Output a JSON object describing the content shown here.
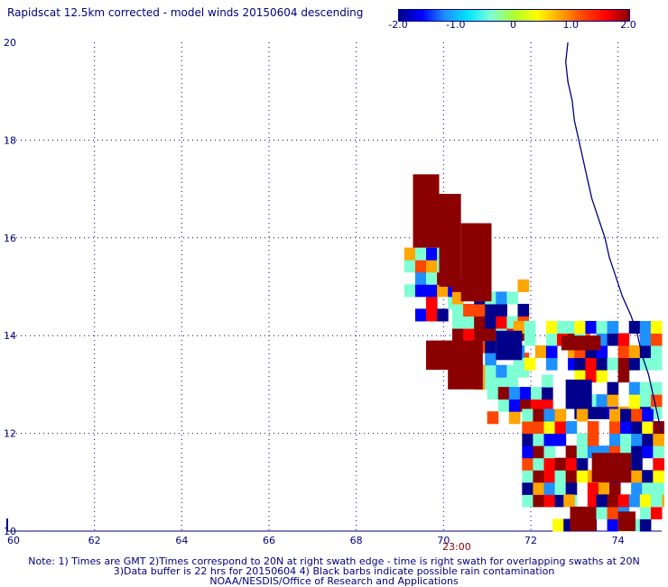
{
  "title": "Rapidscat 12.5km corrected - model winds 20150604 descending",
  "colorbar": {
    "ticks": [
      "-2.0",
      "-1.0",
      "0",
      "1.0",
      "2.0"
    ],
    "tick_values": [
      -2,
      -1,
      0,
      1,
      2
    ],
    "colors": [
      "#00008b",
      "#0000ff",
      "#1e90ff",
      "#00e5ff",
      "#7fffd4",
      "#adff2f",
      "#ffff00",
      "#ffa500",
      "#ff4500",
      "#ff0000",
      "#8b0000"
    ]
  },
  "axes": {
    "x_ticks": [
      "60",
      "62",
      "64",
      "66",
      "68",
      "70",
      "72",
      "74"
    ],
    "x_values": [
      60,
      62,
      64,
      66,
      68,
      70,
      72,
      74
    ],
    "y_ticks": [
      "10",
      "12",
      "14",
      "16",
      "18",
      "20"
    ],
    "y_values": [
      10,
      12,
      14,
      16,
      18,
      20
    ],
    "xlim": [
      60,
      75
    ],
    "ylim": [
      10,
      20
    ],
    "grid": true
  },
  "time_label": "23:00",
  "notes": {
    "line1": "Note: 1) Times are GMT 2)Times correspond to 20N at right swath edge - time is right swath for overlapping swaths at 20N",
    "line2": "3)Data buffer is 22 hrs for 20150604 4) Black barbs indicate possible rain contamination",
    "line3": "NOAA/NESDIS/Office of Research and Applications"
  },
  "chart_data": {
    "type": "heatmap",
    "title": "Rapidscat 12.5km corrected - model winds 20150604 descending",
    "xlabel": "",
    "ylabel": "",
    "xlim": [
      60,
      75
    ],
    "ylim": [
      10,
      20
    ],
    "value_range": [
      -2.0,
      2.0
    ],
    "cell_size_deg": 0.25,
    "regions": [
      {
        "lon": [
          69.3,
          69.9
        ],
        "lat": [
          15.8,
          17.3
        ],
        "value": 2.0
      },
      {
        "lon": [
          69.9,
          70.4
        ],
        "lat": [
          15.0,
          16.9
        ],
        "value": 2.0
      },
      {
        "lon": [
          70.4,
          71.1
        ],
        "lat": [
          14.7,
          16.3
        ],
        "value": 2.0
      },
      {
        "lon": [
          69.6,
          70.9
        ],
        "lat": [
          13.3,
          13.9
        ],
        "value": 2.0
      },
      {
        "lon": [
          70.1,
          70.9
        ],
        "lat": [
          12.9,
          13.4
        ],
        "value": 2.0
      },
      {
        "lon": [
          71.2,
          71.8
        ],
        "lat": [
          13.5,
          14.1
        ],
        "value": -2.0
      },
      {
        "lon": [
          72.8,
          73.4
        ],
        "lat": [
          12.5,
          13.1
        ],
        "value": -2.0
      },
      {
        "lon": [
          72.7,
          73.6
        ],
        "lat": [
          13.7,
          14.0
        ],
        "value": 2.0
      },
      {
        "lon": [
          73.4,
          74.3
        ],
        "lat": [
          11.0,
          11.6
        ],
        "value": 2.0
      },
      {
        "lon": [
          72.9,
          73.5
        ],
        "lat": [
          10.0,
          10.5
        ],
        "value": 2.0
      },
      {
        "lon": [
          74.0,
          74.4
        ],
        "lat": [
          10.0,
          10.4
        ],
        "value": 2.0
      }
    ]
  }
}
